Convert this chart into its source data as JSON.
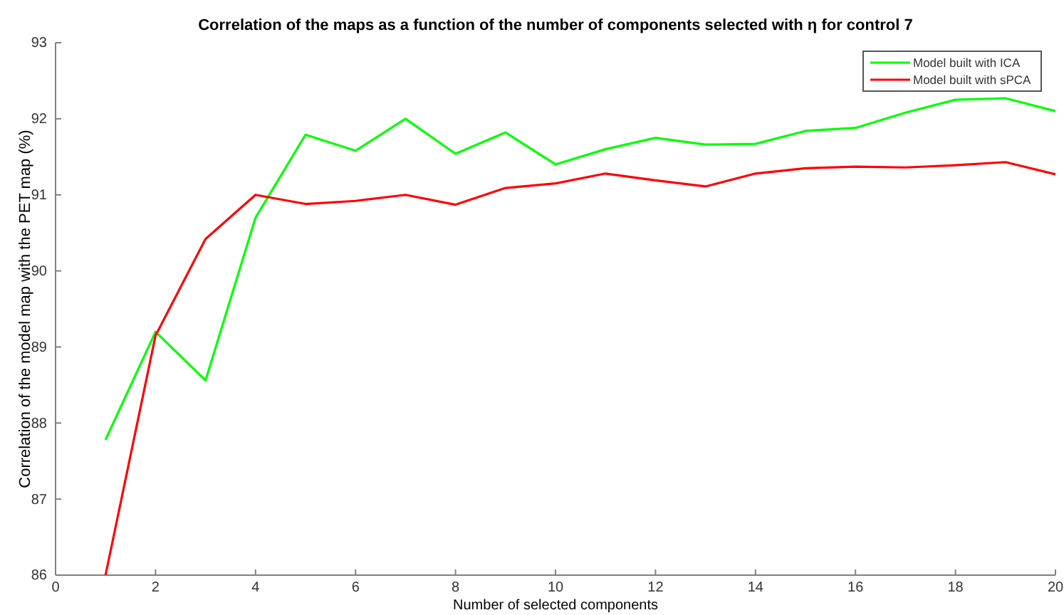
{
  "chart_data": {
    "type": "line",
    "title": "Correlation of the maps as a function of the number of components selected with η for control 7",
    "xlabel": "Number of selected components",
    "ylabel": "Correlation of the model map with the PET map (%)",
    "x": [
      1,
      2,
      3,
      4,
      5,
      6,
      7,
      8,
      9,
      10,
      11,
      12,
      13,
      14,
      15,
      16,
      17,
      18,
      19,
      20
    ],
    "series": [
      {
        "name": "Model built with ICA",
        "color": "#00ff00",
        "values": [
          87.78,
          89.2,
          88.56,
          90.7,
          91.79,
          91.58,
          92.0,
          91.54,
          91.82,
          91.4,
          91.6,
          91.75,
          91.66,
          91.67,
          91.84,
          91.88,
          92.08,
          92.25,
          92.27,
          92.1
        ]
      },
      {
        "name": "Model built with sPCA",
        "color": "#ff0000",
        "values": [
          86.0,
          89.15,
          90.42,
          91.0,
          90.88,
          90.92,
          91.0,
          90.87,
          91.09,
          91.15,
          91.28,
          91.19,
          91.11,
          91.28,
          91.35,
          91.37,
          91.36,
          91.39,
          91.43,
          91.27
        ]
      }
    ],
    "xlim": [
      0,
      20
    ],
    "xticks": [
      0,
      2,
      4,
      6,
      8,
      10,
      12,
      14,
      16,
      18,
      20
    ],
    "ylim": [
      86,
      93
    ],
    "yticks": [
      86,
      87,
      88,
      89,
      90,
      91,
      92,
      93
    ],
    "legend": "top right",
    "grid": false
  }
}
